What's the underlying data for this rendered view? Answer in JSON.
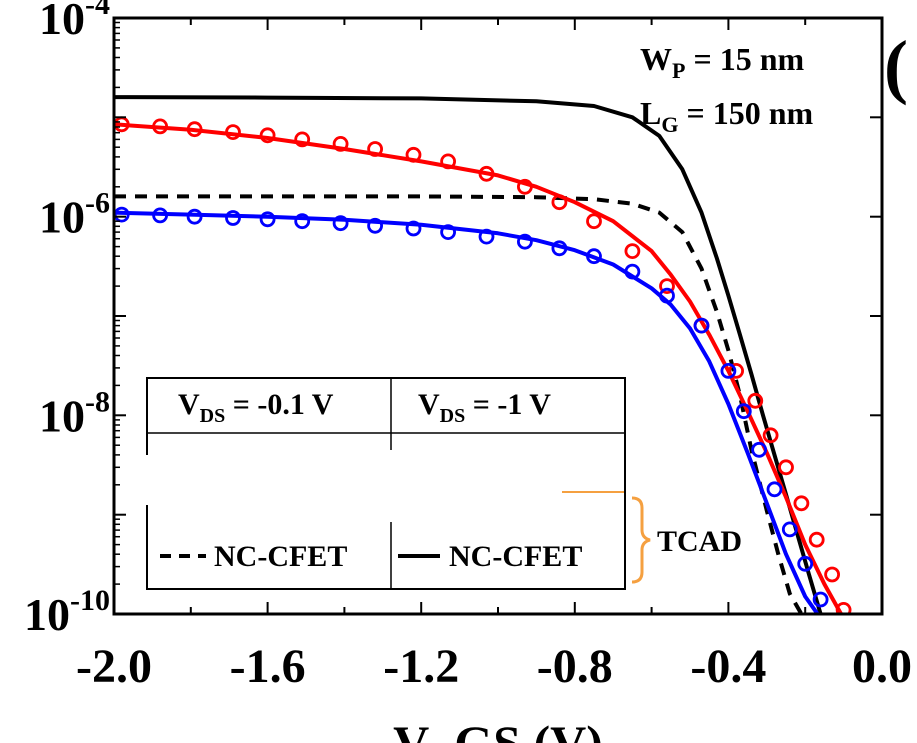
{
  "panel_tag": "(",
  "chart_data": {
    "type": "line",
    "title": "",
    "xlabel": "V_GS (V)",
    "ylabel": "",
    "xlim": [
      -2.0,
      0.0
    ],
    "ylim": [
      1e-10,
      0.0001
    ],
    "yscale": "log",
    "grid": false,
    "x_ticks": [
      "-2.0",
      "-1.6",
      "-1.2",
      "-0.8",
      "-0.4",
      "0.0"
    ],
    "y_ticks": [
      {
        "base": "10",
        "exp": "-4"
      },
      {
        "base": "10",
        "exp": "-6"
      },
      {
        "base": "10",
        "exp": "-8"
      },
      {
        "base": "10",
        "exp": "-10"
      }
    ],
    "annotations": [
      {
        "main": "W",
        "sub": "P",
        "rest": " = 15 nm"
      },
      {
        "main": "L",
        "sub": "G",
        "rest": " = 150 nm"
      }
    ],
    "legend": {
      "placement": "bottom-left",
      "col1_head": {
        "main": "V",
        "sub": "DS",
        "rest": " = -0.1 V"
      },
      "col2_head": {
        "main": "V",
        "sub": "DS",
        "rest": " = -1 V"
      },
      "col1_label": "NC-CFET",
      "col2_label": "NC-CFET",
      "bracket_label": "TCAD"
    },
    "series": [
      {
        "style": "dashed",
        "color": "#000000",
        "markers": false,
        "x": [
          -2.0,
          -1.6,
          -1.2,
          -0.9,
          -0.75,
          -0.65,
          -0.58,
          -0.52,
          -0.47,
          -0.43,
          -0.4,
          -0.37,
          -0.34,
          -0.3,
          -0.27,
          -0.24,
          -0.21,
          -0.19
        ],
        "y": [
          1.6e-06,
          1.6e-06,
          1.6e-06,
          1.57e-06,
          1.5e-06,
          1.35e-06,
          1.1e-06,
          7e-07,
          3e-07,
          1.1e-07,
          4.5e-08,
          1.6e-08,
          4.5e-09,
          1.1e-09,
          4e-10,
          1.6e-10,
          1e-10,
          7e-11
        ]
      },
      {
        "style": "solid",
        "color": "#000000",
        "markers": false,
        "x": [
          -2.0,
          -1.6,
          -1.2,
          -0.9,
          -0.75,
          -0.65,
          -0.58,
          -0.52,
          -0.47,
          -0.43,
          -0.4,
          -0.37,
          -0.34,
          -0.31,
          -0.28,
          -0.25,
          -0.22,
          -0.19,
          -0.16,
          -0.13
        ],
        "y": [
          1.6e-05,
          1.58e-05,
          1.55e-05,
          1.45e-05,
          1.3e-05,
          1e-05,
          6.5e-06,
          3e-06,
          1.1e-06,
          3.8e-07,
          1.6e-07,
          6.5e-08,
          2.6e-08,
          1e-08,
          4e-09,
          1.6e-09,
          6.3e-10,
          2.5e-10,
          1e-10,
          6e-11
        ]
      },
      {
        "style": "solid",
        "color": "#ff0000",
        "markers": false,
        "x": [
          -2.0,
          -1.8,
          -1.6,
          -1.4,
          -1.2,
          -1.0,
          -0.9,
          -0.8,
          -0.7,
          -0.6,
          -0.55,
          -0.5,
          -0.45,
          -0.4,
          -0.35,
          -0.3,
          -0.25,
          -0.2,
          -0.15,
          -0.1,
          -0.06
        ],
        "y": [
          8.5e-06,
          7.5e-06,
          6.2e-06,
          4.8e-06,
          3.6e-06,
          2.6e-06,
          2e-06,
          1.4e-06,
          9e-07,
          4.5e-07,
          2.6e-07,
          1.4e-07,
          6.5e-08,
          2.8e-08,
          1.1e-08,
          4.2e-09,
          1.5e-09,
          5e-10,
          2e-10,
          9e-11,
          6e-11
        ]
      },
      {
        "style": "solid",
        "color": "#0000ff",
        "markers": false,
        "x": [
          -2.0,
          -1.8,
          -1.6,
          -1.4,
          -1.2,
          -1.0,
          -0.9,
          -0.8,
          -0.7,
          -0.6,
          -0.55,
          -0.5,
          -0.45,
          -0.4,
          -0.35,
          -0.3,
          -0.25,
          -0.2,
          -0.15,
          -0.12
        ],
        "y": [
          1.1e-06,
          1.05e-06,
          1e-06,
          9.3e-07,
          8.3e-07,
          6.8e-07,
          5.8e-07,
          4.6e-07,
          3.3e-07,
          1.9e-07,
          1.3e-07,
          7.5e-08,
          3.5e-08,
          1.3e-08,
          4.2e-09,
          1.3e-09,
          4e-10,
          1.5e-10,
          8e-11,
          6e-11
        ]
      },
      {
        "style": "markers",
        "color": "#ff0000",
        "markers": true,
        "x": [
          -1.98,
          -1.88,
          -1.79,
          -1.69,
          -1.6,
          -1.51,
          -1.41,
          -1.32,
          -1.22,
          -1.13,
          -1.03,
          -0.93,
          -0.84,
          -0.75,
          -0.65,
          -0.56,
          -0.47,
          -0.38,
          -0.33,
          -0.29,
          -0.25,
          -0.21,
          -0.17,
          -0.13,
          -0.1,
          -0.06
        ],
        "y": [
          8.5e-06,
          8.1e-06,
          7.6e-06,
          7.1e-06,
          6.6e-06,
          6e-06,
          5.4e-06,
          4.8e-06,
          4.2e-06,
          3.6e-06,
          2.7e-06,
          2e-06,
          1.4e-06,
          9e-07,
          4.5e-07,
          2e-07,
          8e-08,
          2.8e-08,
          1.4e-08,
          6.3e-09,
          3e-09,
          1.3e-09,
          5.6e-10,
          2.5e-10,
          1.1e-10,
          6.5e-11
        ]
      },
      {
        "style": "markers",
        "color": "#0000ff",
        "markers": true,
        "x": [
          -1.98,
          -1.88,
          -1.79,
          -1.69,
          -1.6,
          -1.51,
          -1.41,
          -1.32,
          -1.22,
          -1.13,
          -1.03,
          -0.93,
          -0.84,
          -0.75,
          -0.65,
          -0.56,
          -0.47,
          -0.4,
          -0.36,
          -0.32,
          -0.28,
          -0.24,
          -0.2,
          -0.16,
          -0.12
        ],
        "y": [
          1.05e-06,
          1.03e-06,
          1e-06,
          9.7e-07,
          9.4e-07,
          9e-07,
          8.6e-07,
          8.1e-07,
          7.6e-07,
          7e-07,
          6.3e-07,
          5.6e-07,
          4.8e-07,
          4e-07,
          2.8e-07,
          1.6e-07,
          8e-08,
          2.8e-08,
          1.1e-08,
          4.5e-09,
          1.8e-09,
          7.1e-10,
          3.2e-10,
          1.4e-10,
          7e-11
        ]
      }
    ]
  }
}
